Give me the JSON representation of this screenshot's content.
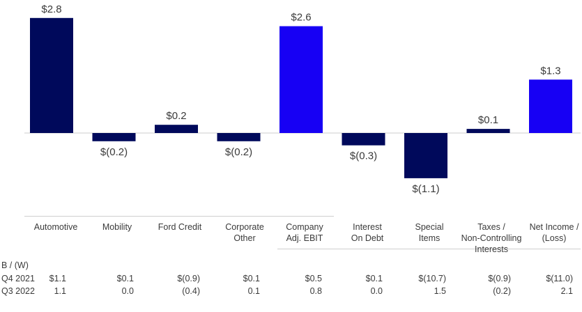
{
  "chart_data": {
    "type": "bar",
    "categories": [
      "Automotive",
      "Mobility",
      "Ford Credit",
      "Corporate\nOther",
      "Company\nAdj. EBIT",
      "Interest\nOn Debt",
      "Special\nItems",
      "Taxes /\nNon-Controlling\nInterests",
      "Net Income /\n(Loss)"
    ],
    "values": [
      2.8,
      -0.2,
      0.2,
      -0.2,
      2.6,
      -0.3,
      -1.1,
      0.1,
      1.3
    ],
    "value_labels": [
      "$2.8",
      "$(0.2)",
      "$0.2",
      "$(0.2)",
      "$2.6",
      "$(0.3)",
      "$(1.1)",
      "$0.1",
      "$1.3"
    ],
    "highlight": [
      false,
      false,
      false,
      false,
      true,
      false,
      false,
      false,
      true
    ],
    "colors": {
      "primary": "#00095b",
      "highlight": "#1700f4",
      "axis": "#cccccc"
    },
    "ylim": [
      -1.15,
      2.95
    ],
    "title": "",
    "xlabel": "",
    "ylabel": ""
  },
  "table": {
    "header": "B / (W)",
    "rows": [
      {
        "label": "Q4 2021",
        "values": [
          "$1.1",
          "$0.1",
          "$(0.9)",
          "$0.1",
          "$0.5",
          "$0.1",
          "$(10.7)",
          "$(0.9)",
          "$(11.0)"
        ]
      },
      {
        "label": "Q3 2022",
        "values": [
          "1.1",
          "0.0",
          "(0.4)",
          "0.1",
          "0.8",
          "0.0",
          "1.5",
          "(0.2)",
          "2.1"
        ]
      }
    ]
  }
}
